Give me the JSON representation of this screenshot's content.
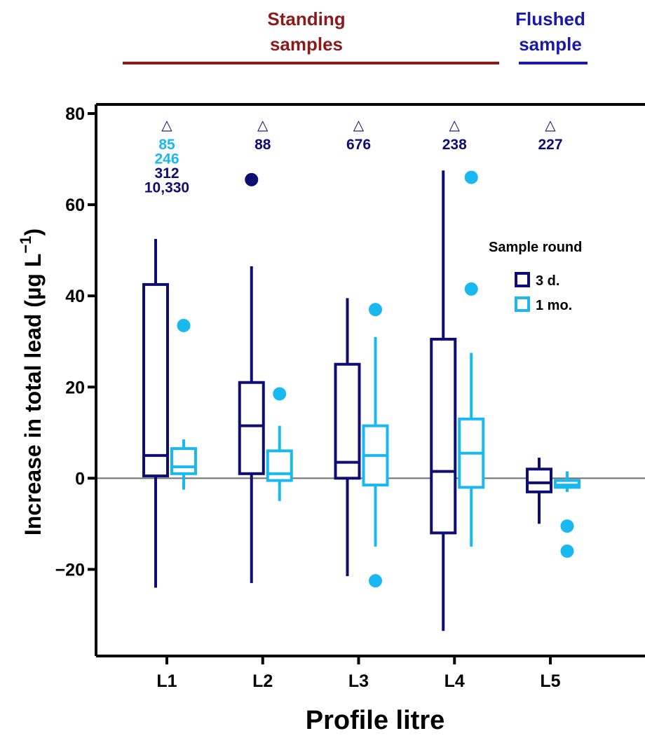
{
  "groups": {
    "standing_label_line1": "Standing",
    "standing_label_line2": "samples",
    "flushed_label_line1": "Flushed",
    "flushed_label_line2": "sample",
    "standing_color": "#8b1a1a",
    "flushed_color": "#1a1aa8"
  },
  "chart_data": {
    "type": "box",
    "xlabel": "Profile litre",
    "ylabel": "Increase in total lead (µg L",
    "ylabel_unit_superscript": "−1",
    "ylabel_close": ")",
    "ylim": [
      -39,
      82
    ],
    "yticks": [
      80,
      60,
      40,
      20,
      0,
      -20
    ],
    "ytick_labels": [
      "80",
      "60",
      "40",
      "20",
      "0",
      "−20"
    ],
    "categories": [
      "L1",
      "L2",
      "L3",
      "L4",
      "L5"
    ],
    "zero_line": true,
    "grid": false,
    "legend": {
      "title": "Sample round",
      "position": "right",
      "entries": [
        "3 d.",
        "1 mo."
      ]
    },
    "colors": {
      "d3": "#0d0d73",
      "mo1": "#1ab8f0"
    },
    "series": [
      {
        "name": "3 d.",
        "boxes": [
          {
            "category": "L1",
            "whisker_low": -24,
            "q1": 0.5,
            "median": 5,
            "q3": 42.5,
            "whisker_high": 52.5,
            "outliers": []
          },
          {
            "category": "L2",
            "whisker_low": -23,
            "q1": 1,
            "median": 11.5,
            "q3": 21,
            "whisker_high": 46.5,
            "outliers": [
              65.5
            ]
          },
          {
            "category": "L3",
            "whisker_low": -21.5,
            "q1": 0,
            "median": 3.5,
            "q3": 25,
            "whisker_high": 39.5,
            "outliers": []
          },
          {
            "category": "L4",
            "whisker_low": -33.5,
            "q1": -12,
            "median": 1.5,
            "q3": 30.5,
            "whisker_high": 67.5,
            "outliers": []
          },
          {
            "category": "L5",
            "whisker_low": -10,
            "q1": -3,
            "median": -1,
            "q3": 2,
            "whisker_high": 4.5,
            "outliers": []
          }
        ]
      },
      {
        "name": "1 mo.",
        "boxes": [
          {
            "category": "L1",
            "whisker_low": -2.5,
            "q1": 1,
            "median": 2.5,
            "q3": 6.5,
            "whisker_high": 8.5,
            "outliers": [
              33.5
            ]
          },
          {
            "category": "L2",
            "whisker_low": -5,
            "q1": -0.5,
            "median": 1,
            "q3": 6,
            "whisker_high": 11.5,
            "outliers": [
              18.5
            ]
          },
          {
            "category": "L3",
            "whisker_low": -15,
            "q1": -1.5,
            "median": 5,
            "q3": 11.5,
            "whisker_high": 31,
            "outliers": [
              37,
              -22.5
            ]
          },
          {
            "category": "L4",
            "whisker_low": -15,
            "q1": -2,
            "median": 5.5,
            "q3": 13,
            "whisker_high": 27.5,
            "outliers": [
              66,
              41.5
            ]
          },
          {
            "category": "L5",
            "whisker_low": -3,
            "q1": -2,
            "median": -1.5,
            "q3": -0.5,
            "whisker_high": 1.5,
            "outliers": [
              -10.5,
              -16
            ]
          }
        ]
      }
    ],
    "off_scale_annotations": [
      {
        "category": "L1",
        "values": [
          {
            "text": "85",
            "series": "1 mo."
          },
          {
            "text": "246",
            "series": "1 mo."
          },
          {
            "text": "312",
            "series": "3 d."
          },
          {
            "text": "10,330",
            "series": "3 d."
          }
        ]
      },
      {
        "category": "L2",
        "values": [
          {
            "text": "88",
            "series": "3 d."
          }
        ]
      },
      {
        "category": "L3",
        "values": [
          {
            "text": "676",
            "series": "3 d."
          }
        ]
      },
      {
        "category": "L4",
        "values": [
          {
            "text": "238",
            "series": "3 d."
          }
        ]
      },
      {
        "category": "L5",
        "values": [
          {
            "text": "227",
            "series": "3 d."
          }
        ]
      }
    ],
    "off_scale_marker": "△"
  }
}
